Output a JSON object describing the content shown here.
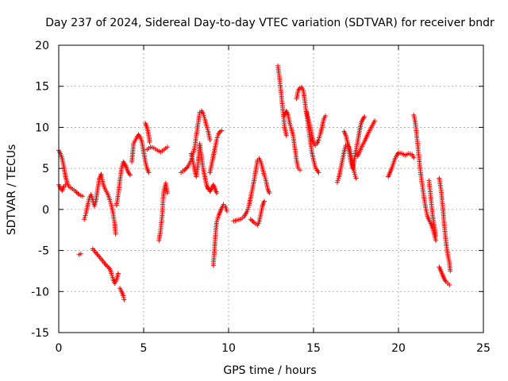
{
  "chart_data": {
    "type": "scatter",
    "title": "Day 237 of 2024, Sidereal Day-to-day VTEC variation (SDTVAR) for receiver bndr",
    "xlabel": "GPS time / hours",
    "ylabel": "SDTVAR / TECUs",
    "xlim": [
      0,
      25
    ],
    "ylim": [
      -15,
      20
    ],
    "xticks": [
      "0",
      "5",
      "10",
      "15",
      "20",
      "25"
    ],
    "yticks": [
      "-15",
      "-10",
      "-5",
      "0",
      "5",
      "10",
      "15",
      "20"
    ],
    "grid": true,
    "marker": "plus",
    "color": "#ff0000",
    "segments": [
      [
        [
          0.0,
          7.2
        ],
        [
          0.1,
          6.8
        ],
        [
          0.2,
          6.2
        ],
        [
          0.3,
          5.2
        ],
        [
          0.4,
          4.0
        ],
        [
          0.5,
          3.2
        ],
        [
          0.6,
          2.8
        ],
        [
          0.8,
          2.5
        ],
        [
          1.0,
          2.2
        ],
        [
          1.2,
          1.8
        ],
        [
          1.4,
          1.6
        ]
      ],
      [
        [
          0.0,
          3.0
        ],
        [
          0.1,
          2.6
        ],
        [
          0.2,
          2.3
        ],
        [
          0.3,
          2.8
        ],
        [
          0.4,
          3.0
        ]
      ],
      [
        [
          1.5,
          -1.2
        ],
        [
          1.6,
          -0.5
        ],
        [
          1.7,
          0.5
        ],
        [
          1.8,
          1.4
        ],
        [
          1.9,
          1.8
        ],
        [
          2.0,
          1.2
        ],
        [
          2.1,
          0.4
        ],
        [
          2.2,
          1.2
        ],
        [
          2.3,
          2.6
        ],
        [
          2.4,
          3.8
        ],
        [
          2.5,
          4.3
        ],
        [
          2.6,
          3.2
        ],
        [
          2.7,
          2.6
        ],
        [
          2.8,
          2.2
        ],
        [
          2.9,
          1.8
        ],
        [
          3.0,
          1.2
        ],
        [
          3.1,
          0.5
        ],
        [
          3.2,
          -0.5
        ],
        [
          3.3,
          -1.8
        ],
        [
          3.35,
          -3.0
        ]
      ],
      [
        [
          1.2,
          -5.5
        ],
        [
          1.3,
          -5.4
        ]
      ],
      [
        [
          2.0,
          -4.8
        ],
        [
          2.2,
          -5.3
        ],
        [
          2.4,
          -5.8
        ],
        [
          2.6,
          -6.3
        ],
        [
          2.8,
          -6.8
        ],
        [
          3.0,
          -7.2
        ],
        [
          3.1,
          -7.8
        ],
        [
          3.2,
          -8.5
        ],
        [
          3.3,
          -9.0
        ],
        [
          3.4,
          -8.6
        ],
        [
          3.5,
          -7.8
        ]
      ],
      [
        [
          3.4,
          0.5
        ],
        [
          3.5,
          1.8
        ],
        [
          3.6,
          3.5
        ],
        [
          3.7,
          5.0
        ],
        [
          3.8,
          5.8
        ],
        [
          3.9,
          5.5
        ],
        [
          4.0,
          5.0
        ],
        [
          4.1,
          4.5
        ],
        [
          4.2,
          4.2
        ]
      ],
      [
        [
          3.6,
          -9.6
        ],
        [
          3.7,
          -10.0
        ],
        [
          3.8,
          -10.5
        ],
        [
          3.85,
          -11.0
        ]
      ],
      [
        [
          4.3,
          5.8
        ],
        [
          4.35,
          6.8
        ],
        [
          4.4,
          8.0
        ],
        [
          4.5,
          8.4
        ],
        [
          4.6,
          8.8
        ],
        [
          4.7,
          9.1
        ],
        [
          4.8,
          8.8
        ],
        [
          4.9,
          8.2
        ],
        [
          5.0,
          7.0
        ],
        [
          5.1,
          5.8
        ],
        [
          5.2,
          5.0
        ],
        [
          5.3,
          4.5
        ]
      ],
      [
        [
          5.1,
          10.5
        ],
        [
          5.2,
          10.0
        ],
        [
          5.3,
          9.0
        ],
        [
          5.35,
          8.2
        ]
      ],
      [
        [
          5.2,
          7.3
        ],
        [
          5.4,
          7.6
        ],
        [
          5.6,
          7.5
        ],
        [
          5.8,
          7.2
        ],
        [
          6.0,
          7.0
        ],
        [
          6.2,
          7.3
        ],
        [
          6.4,
          7.6
        ]
      ],
      [
        [
          5.9,
          -3.8
        ],
        [
          6.0,
          -2.5
        ],
        [
          6.1,
          -0.5
        ],
        [
          6.15,
          1.5
        ],
        [
          6.2,
          2.5
        ],
        [
          6.3,
          3.2
        ],
        [
          6.4,
          2.0
        ]
      ],
      [
        [
          7.2,
          4.5
        ],
        [
          7.4,
          4.8
        ],
        [
          7.6,
          5.2
        ],
        [
          7.8,
          6.0
        ],
        [
          8.0,
          7.5
        ],
        [
          8.1,
          9.0
        ],
        [
          8.2,
          10.5
        ],
        [
          8.3,
          11.8
        ],
        [
          8.4,
          12.0
        ],
        [
          8.5,
          11.7
        ],
        [
          8.6,
          11.0
        ],
        [
          8.7,
          10.2
        ],
        [
          8.8,
          9.5
        ],
        [
          8.9,
          8.5
        ]
      ],
      [
        [
          7.8,
          6.8
        ],
        [
          7.9,
          5.8
        ],
        [
          8.0,
          4.8
        ],
        [
          8.1,
          4.0
        ],
        [
          8.2,
          5.5
        ],
        [
          8.3,
          8.0
        ],
        [
          8.4,
          6.5
        ],
        [
          8.5,
          5.0
        ],
        [
          8.6,
          4.0
        ],
        [
          8.7,
          3.0
        ],
        [
          8.8,
          2.5
        ],
        [
          8.9,
          2.4
        ]
      ],
      [
        [
          8.9,
          4.5
        ],
        [
          9.0,
          5.5
        ],
        [
          9.1,
          6.5
        ],
        [
          9.2,
          7.5
        ],
        [
          9.3,
          8.5
        ],
        [
          9.4,
          9.2
        ],
        [
          9.5,
          9.5
        ],
        [
          9.6,
          9.6
        ]
      ],
      [
        [
          8.8,
          2.6
        ],
        [
          8.9,
          2.2
        ],
        [
          9.0,
          2.5
        ],
        [
          9.1,
          3.0
        ],
        [
          9.2,
          2.5
        ],
        [
          9.3,
          2.0
        ]
      ],
      [
        [
          9.1,
          -6.8
        ],
        [
          9.15,
          -5.5
        ],
        [
          9.2,
          -4.0
        ],
        [
          9.25,
          -2.5
        ],
        [
          9.3,
          -1.5
        ],
        [
          9.4,
          -0.8
        ],
        [
          9.5,
          -0.3
        ],
        [
          9.6,
          0.2
        ],
        [
          9.7,
          0.6
        ],
        [
          9.8,
          0.4
        ],
        [
          9.9,
          -0.2
        ]
      ],
      [
        [
          10.3,
          -1.4
        ],
        [
          10.5,
          -1.3
        ],
        [
          10.7,
          -1.2
        ],
        [
          10.9,
          -0.9
        ],
        [
          11.1,
          -0.2
        ],
        [
          11.2,
          0.5
        ],
        [
          11.3,
          1.5
        ],
        [
          11.4,
          2.5
        ],
        [
          11.5,
          3.5
        ],
        [
          11.6,
          4.8
        ],
        [
          11.7,
          6.0
        ],
        [
          11.8,
          6.2
        ],
        [
          11.9,
          5.8
        ],
        [
          12.0,
          5.0
        ],
        [
          12.1,
          4.2
        ],
        [
          12.2,
          3.5
        ],
        [
          12.3,
          2.5
        ],
        [
          12.4,
          2.0
        ]
      ],
      [
        [
          11.3,
          -1.2
        ],
        [
          11.5,
          -1.6
        ],
        [
          11.7,
          -1.9
        ],
        [
          11.8,
          -1.5
        ],
        [
          11.9,
          -0.5
        ],
        [
          12.0,
          0.5
        ],
        [
          12.1,
          1.0
        ]
      ],
      [
        [
          12.9,
          17.5
        ],
        [
          13.0,
          16.0
        ],
        [
          13.1,
          14.0
        ],
        [
          13.2,
          12.0
        ],
        [
          13.3,
          10.0
        ],
        [
          13.4,
          9.0
        ]
      ],
      [
        [
          13.3,
          11.5
        ],
        [
          13.4,
          12.0
        ],
        [
          13.5,
          11.5
        ],
        [
          13.6,
          10.5
        ],
        [
          13.7,
          9.8
        ],
        [
          13.8,
          9.0
        ],
        [
          13.9,
          7.5
        ],
        [
          14.0,
          6.0
        ],
        [
          14.1,
          5.0
        ],
        [
          14.2,
          4.8
        ]
      ],
      [
        [
          14.0,
          13.5
        ],
        [
          14.1,
          14.5
        ],
        [
          14.2,
          14.8
        ],
        [
          14.3,
          14.9
        ],
        [
          14.4,
          14.5
        ],
        [
          14.5,
          13.0
        ],
        [
          14.6,
          11.5
        ],
        [
          14.7,
          10.0
        ],
        [
          14.8,
          8.5
        ],
        [
          14.9,
          7.0
        ],
        [
          15.0,
          6.0
        ],
        [
          15.1,
          5.2
        ],
        [
          15.2,
          4.8
        ],
        [
          15.3,
          4.5
        ]
      ],
      [
        [
          14.6,
          11.8
        ],
        [
          14.7,
          11.0
        ],
        [
          14.8,
          10.0
        ],
        [
          14.9,
          9.0
        ],
        [
          15.0,
          8.2
        ],
        [
          15.1,
          7.8
        ],
        [
          15.2,
          8.0
        ],
        [
          15.3,
          8.5
        ],
        [
          15.4,
          9.2
        ],
        [
          15.5,
          10.0
        ],
        [
          15.6,
          11.0
        ],
        [
          15.7,
          11.4
        ]
      ],
      [
        [
          16.4,
          3.3
        ],
        [
          16.5,
          4.0
        ],
        [
          16.6,
          5.0
        ],
        [
          16.7,
          6.0
        ],
        [
          16.8,
          7.0
        ],
        [
          16.9,
          7.8
        ],
        [
          17.0,
          8.0
        ],
        [
          17.1,
          7.5
        ],
        [
          17.2,
          6.8
        ],
        [
          17.3,
          5.5
        ],
        [
          17.4,
          4.5
        ],
        [
          17.5,
          3.8
        ]
      ],
      [
        [
          16.8,
          9.5
        ],
        [
          16.9,
          9.0
        ],
        [
          17.0,
          8.2
        ],
        [
          17.1,
          7.0
        ],
        [
          17.2,
          5.8
        ],
        [
          17.3,
          5.0
        ],
        [
          17.4,
          6.0
        ],
        [
          17.5,
          7.2
        ],
        [
          17.6,
          8.3
        ],
        [
          17.7,
          9.5
        ],
        [
          17.8,
          10.5
        ],
        [
          17.9,
          11.0
        ],
        [
          18.0,
          11.3
        ]
      ],
      [
        [
          17.6,
          6.5
        ],
        [
          17.8,
          7.5
        ],
        [
          18.0,
          8.3
        ],
        [
          18.2,
          9.2
        ],
        [
          18.4,
          10.0
        ],
        [
          18.6,
          10.8
        ]
      ],
      [
        [
          19.4,
          4.0
        ],
        [
          19.5,
          4.5
        ],
        [
          19.6,
          5.0
        ],
        [
          19.7,
          5.6
        ],
        [
          19.8,
          6.2
        ],
        [
          19.9,
          6.6
        ],
        [
          20.0,
          6.9
        ],
        [
          20.2,
          6.8
        ],
        [
          20.4,
          6.6
        ],
        [
          20.6,
          6.8
        ],
        [
          20.8,
          6.7
        ],
        [
          20.9,
          6.3
        ]
      ],
      [
        [
          20.9,
          11.5
        ],
        [
          21.0,
          10.5
        ],
        [
          21.1,
          8.5
        ],
        [
          21.2,
          6.5
        ],
        [
          21.3,
          4.5
        ],
        [
          21.4,
          3.0
        ],
        [
          21.5,
          1.5
        ],
        [
          21.6,
          0.2
        ],
        [
          21.7,
          -0.8
        ],
        [
          21.8,
          -1.3
        ],
        [
          21.9,
          -1.7
        ],
        [
          22.0,
          -2.2
        ],
        [
          22.1,
          -3.0
        ],
        [
          22.2,
          -3.8
        ]
      ],
      [
        [
          21.8,
          3.5
        ],
        [
          21.9,
          1.5
        ],
        [
          22.0,
          -0.5
        ],
        [
          22.1,
          -2.0
        ],
        [
          22.2,
          -3.2
        ]
      ],
      [
        [
          22.4,
          3.8
        ],
        [
          22.5,
          2.5
        ],
        [
          22.6,
          0.5
        ],
        [
          22.7,
          -2.0
        ],
        [
          22.8,
          -4.0
        ],
        [
          22.9,
          -5.5
        ],
        [
          23.0,
          -6.5
        ],
        [
          23.05,
          -7.5
        ]
      ],
      [
        [
          22.4,
          -7.0
        ],
        [
          22.5,
          -7.5
        ],
        [
          22.6,
          -8.0
        ],
        [
          22.7,
          -8.5
        ],
        [
          22.8,
          -8.8
        ],
        [
          22.9,
          -9.0
        ],
        [
          23.0,
          -9.2
        ]
      ]
    ]
  }
}
